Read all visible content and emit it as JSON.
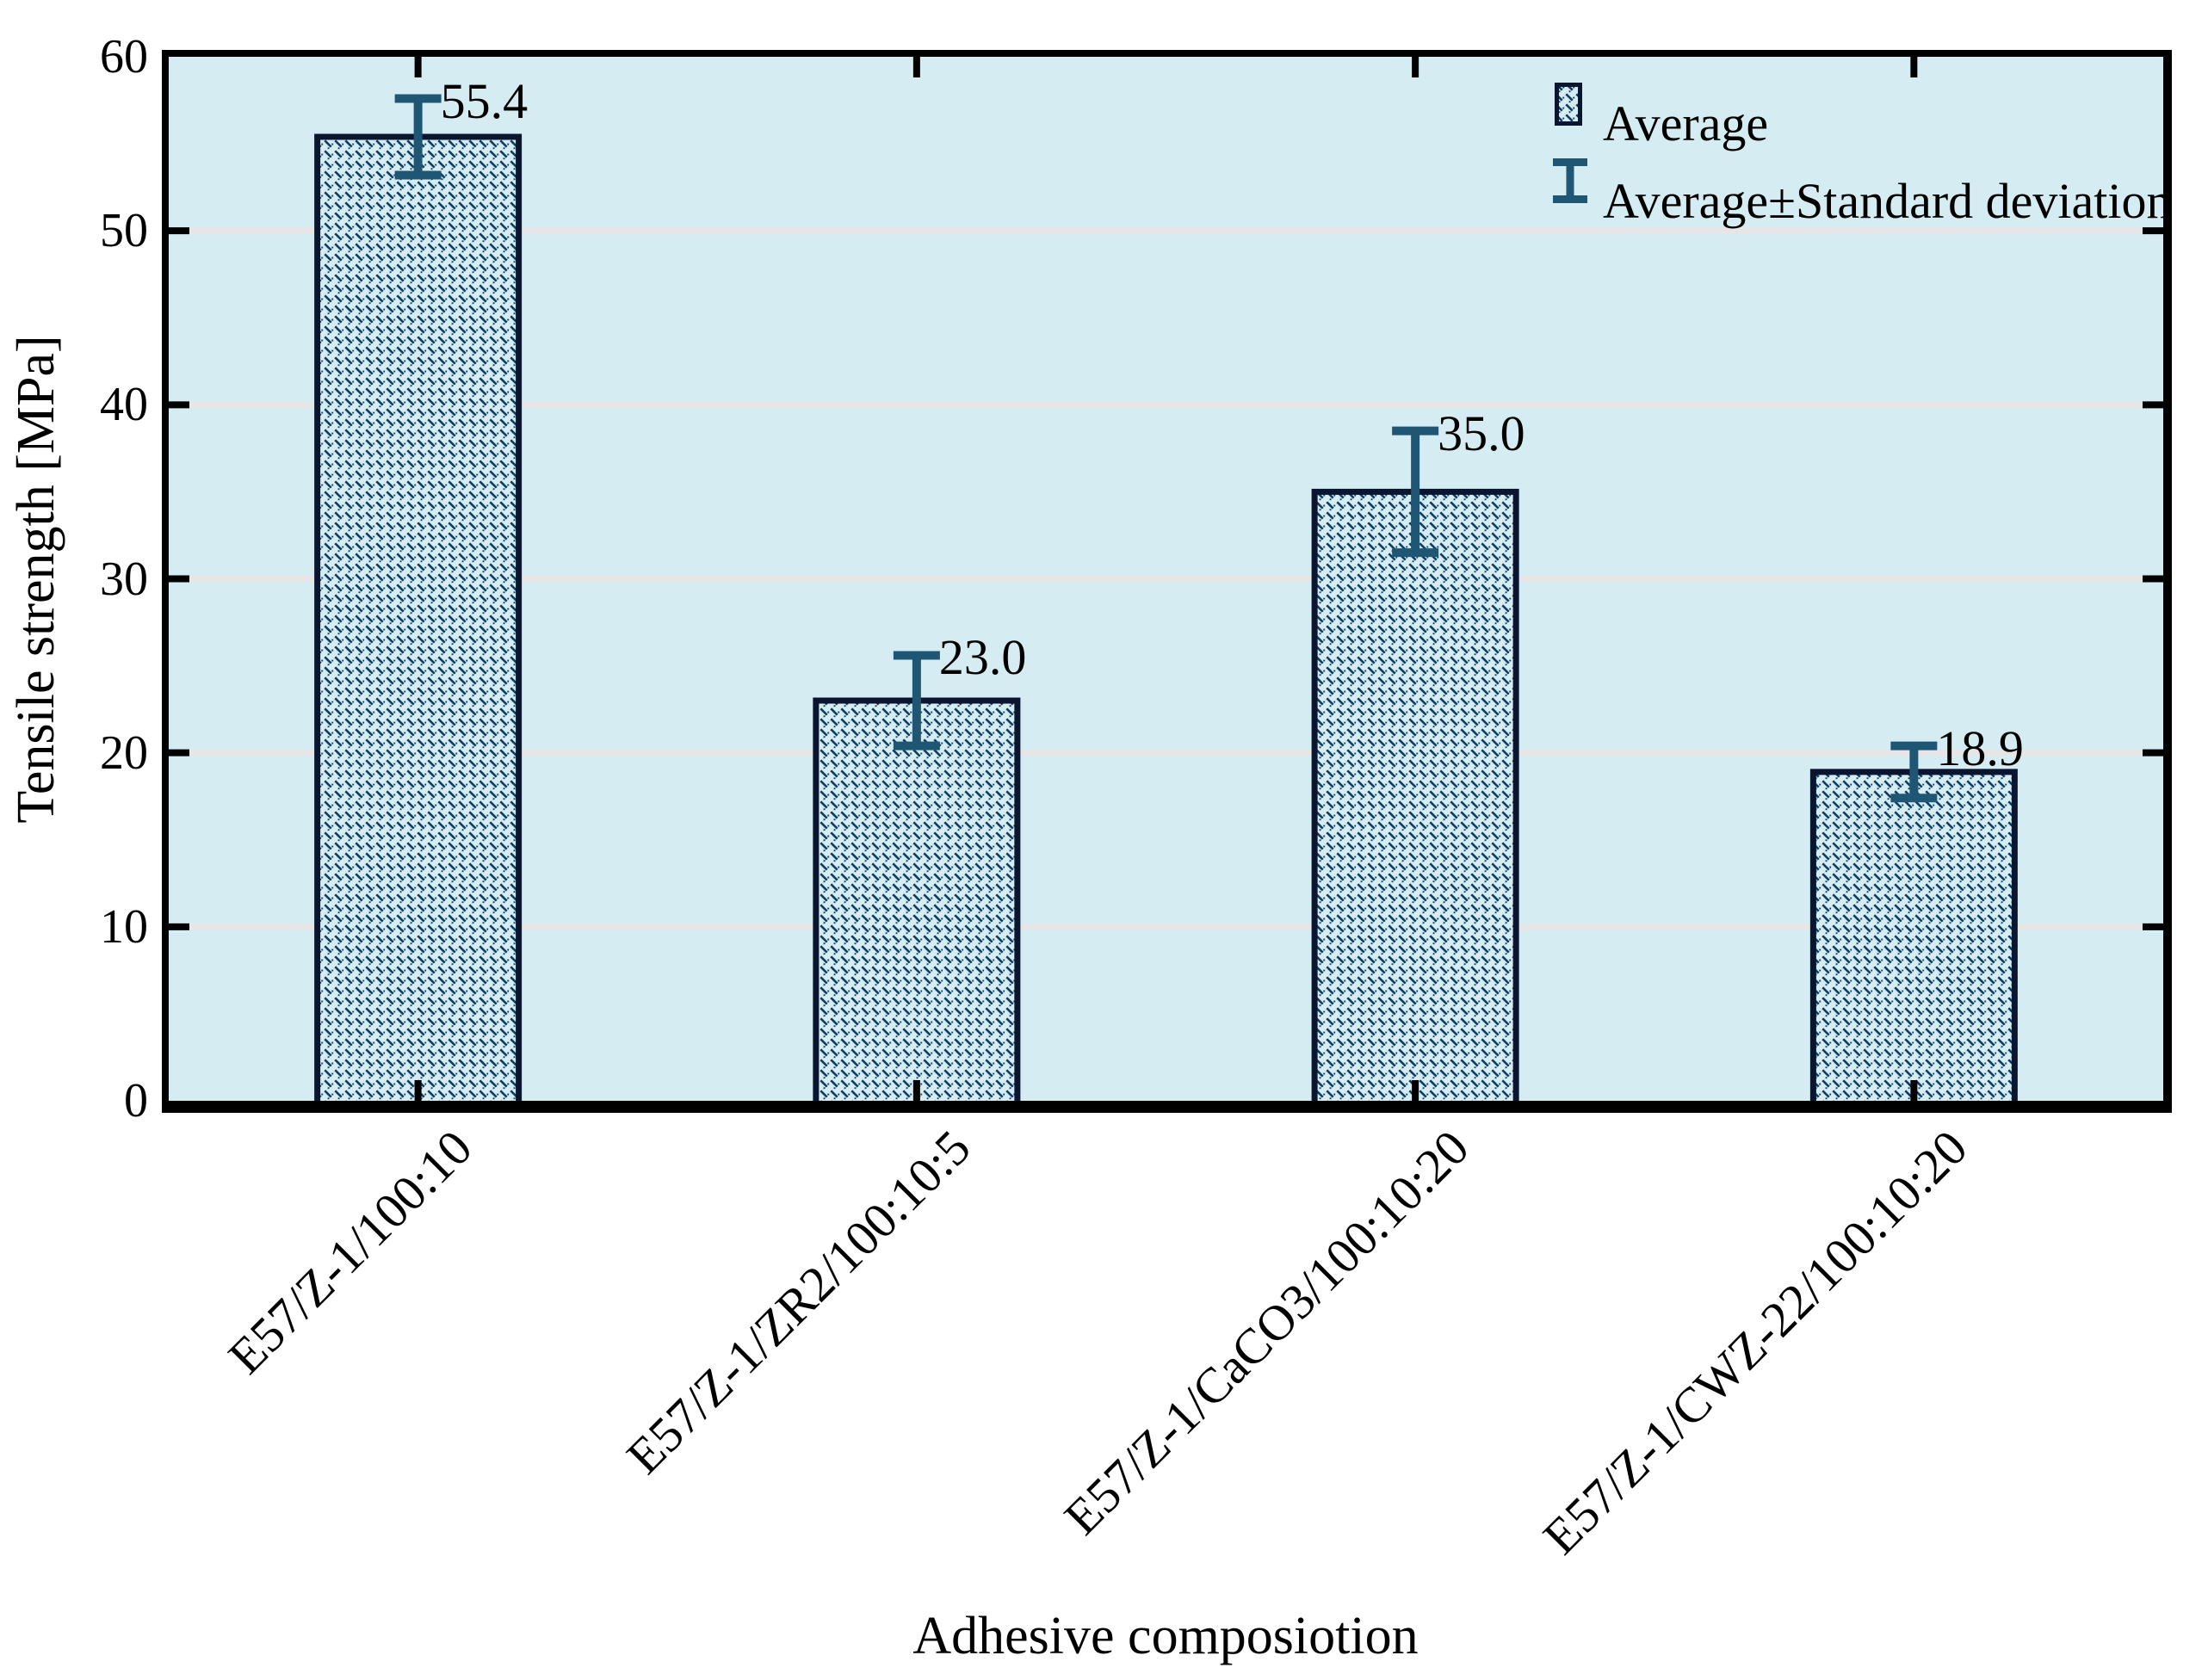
{
  "figure": {
    "background": "#ffffff",
    "title": ""
  },
  "chart_data": {
    "type": "bar",
    "title": "",
    "xlabel": "Adhesive composiotion",
    "ylabel": "Tensile strength [MPa]",
    "categories": [
      "E57/Z-1/100:10",
      "E57/Z-1/ZR2/100:10:5",
      "E57/Z-1/CaCO3/100:10:20",
      "E57/Z-1/CWZ-22/100:10:20"
    ],
    "values": [
      55.4,
      23.0,
      35.0,
      18.9
    ],
    "value_labels": [
      "55.4",
      "23.0",
      "35.0",
      "18.9"
    ],
    "errors": [
      2.2,
      2.6,
      3.5,
      1.5
    ],
    "ylim": [
      0,
      60
    ],
    "yticks": [
      0,
      10,
      20,
      30,
      40,
      50,
      60
    ],
    "ytick_labels": [
      "0",
      "10",
      "20",
      "30",
      "40",
      "50",
      "60"
    ],
    "grid_values": [
      10,
      20,
      30,
      40,
      50
    ],
    "grid": "horizontal light-gray lines at major y ticks",
    "legend_position": "top-right inside plot area",
    "legend": [
      {
        "symbol": "hatch-swatch",
        "label": "Average"
      },
      {
        "symbol": "error-bar-symbol",
        "label": "Average±Standard deviation"
      }
    ],
    "colors": {
      "plot_bg": "#d6ecf3",
      "bar_hatch": "#0f4064",
      "bar_border": "#0a1630",
      "error_bar": "#1e5674",
      "gridline": "#e8e5e6",
      "frame": "#000000",
      "text": "#000000"
    }
  }
}
